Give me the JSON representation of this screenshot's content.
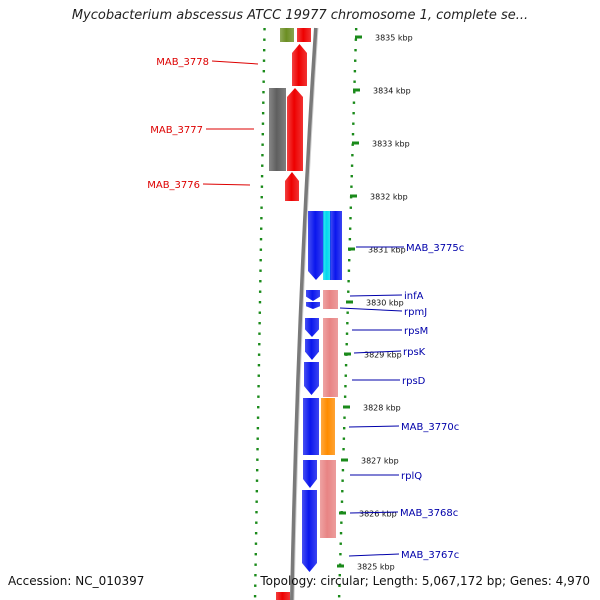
{
  "title": "Mycobacterium abscessus ATCC 19977 chromosome 1, complete se...",
  "accession": "Accession: NC_010397",
  "summary": "Topology: circular; Length: 5,067,172 bp; Genes: 4,970",
  "colors": {
    "red_gene": "#ee0000",
    "gray_gene": "#5f5f5f",
    "olive_gene": "#6b8e23",
    "blue_gene": "#0a16ee",
    "cyan_gene": "#00d8ee",
    "pink_gene": "#e88484",
    "orange_gene": "#ff8c00",
    "tick_green": "#1a8a1a",
    "label_red": "#dd0000",
    "label_blue": "#0000aa"
  },
  "ticks": [
    "3835 kbp",
    "3834 kbp",
    "3833 kbp",
    "3832 kbp",
    "3831 kbp",
    "3830 kbp",
    "3829 kbp",
    "3828 kbp",
    "3827 kbp",
    "3826 kbp",
    "3825 kbp"
  ],
  "left_genes": [
    {
      "label": "MAB_3778"
    },
    {
      "label": "MAB_3777"
    },
    {
      "label": "MAB_3776"
    }
  ],
  "right_genes": [
    {
      "label": "MAB_3775c"
    },
    {
      "label": "infA"
    },
    {
      "label": "rpmJ"
    },
    {
      "label": "rpsM"
    },
    {
      "label": "rpsK"
    },
    {
      "label": "rpsD"
    },
    {
      "label": "MAB_3770c"
    },
    {
      "label": "rplQ"
    },
    {
      "label": "MAB_3768c"
    },
    {
      "label": "MAB_3767c"
    }
  ]
}
